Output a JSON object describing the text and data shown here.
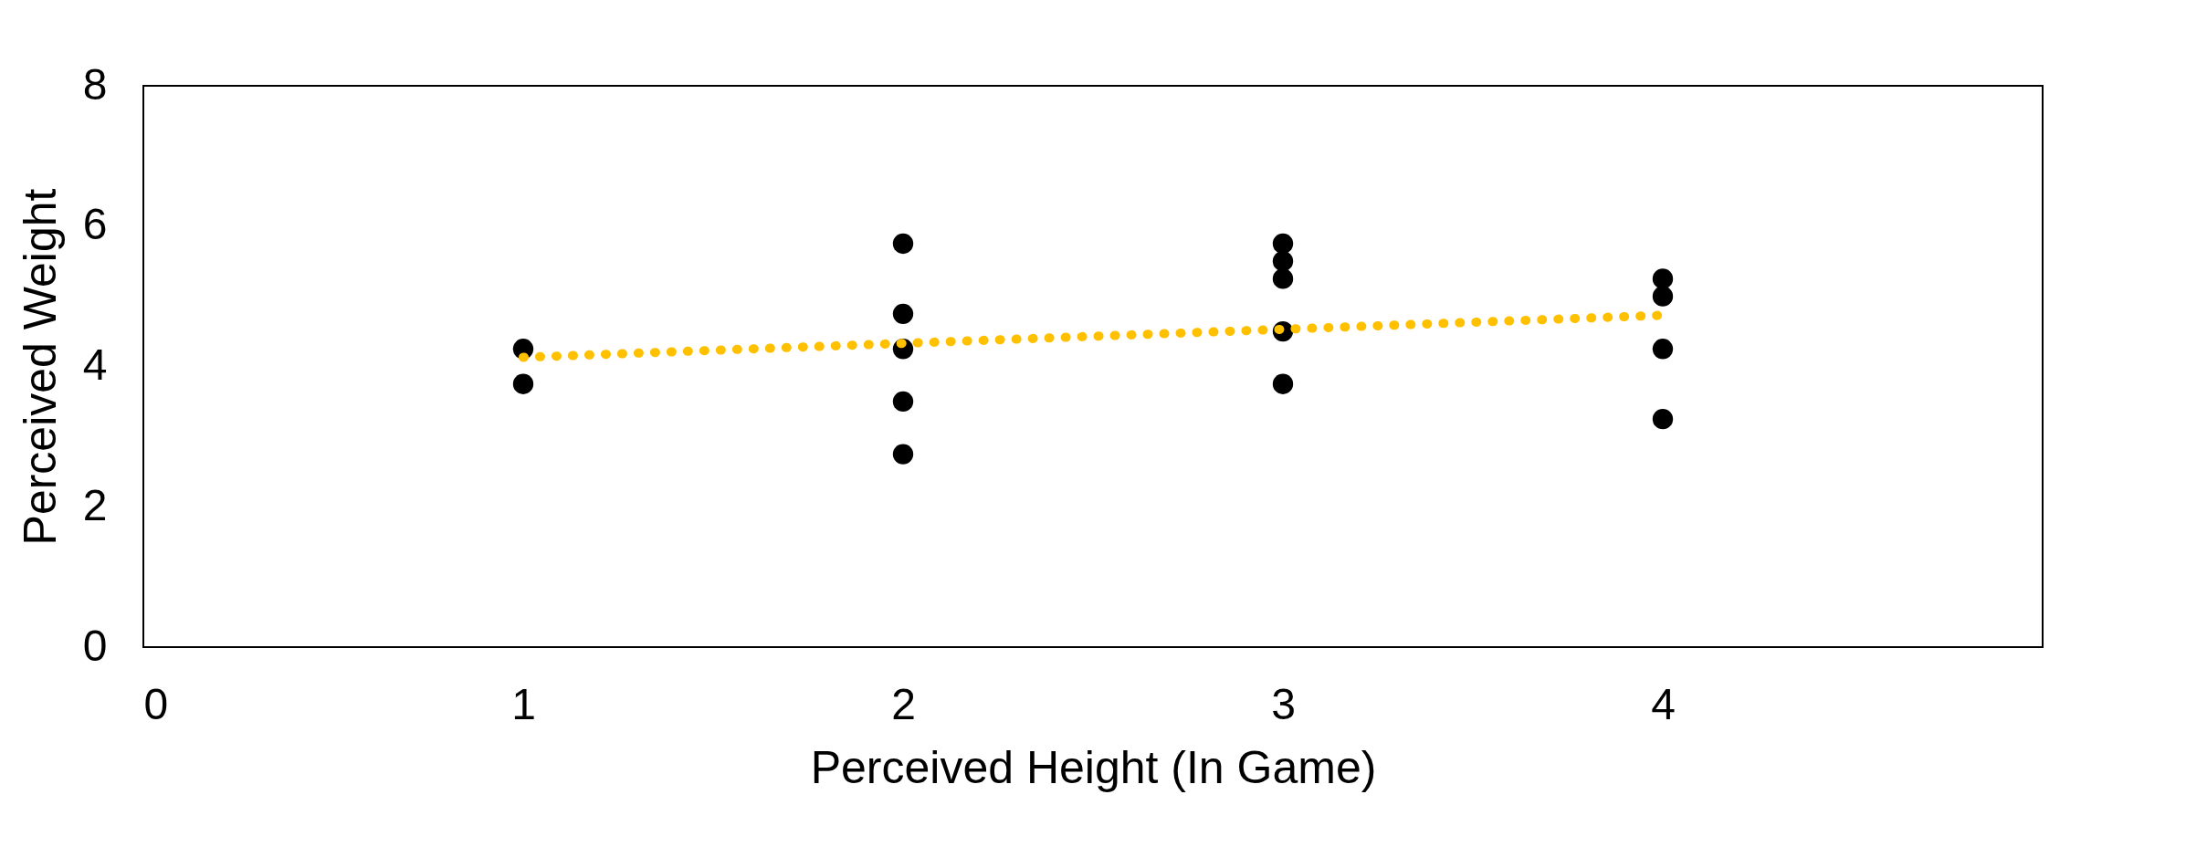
{
  "chart_data": {
    "type": "scatter",
    "xlabel": "Perceived Height (In Game)",
    "ylabel": "Perceived Weight",
    "xlim": [
      0,
      5
    ],
    "xticks": [
      0,
      1,
      2,
      3,
      4
    ],
    "ylim": [
      0,
      8
    ],
    "yticks": [
      0,
      2,
      4,
      6,
      8
    ],
    "grid": false,
    "series": [
      {
        "color": "#000000",
        "marker": "circle",
        "x": [
          1,
          1,
          2,
          2,
          2,
          2,
          2,
          3,
          3,
          3,
          3,
          3,
          4,
          4,
          4,
          4
        ],
        "values": [
          4.25,
          3.75,
          5.75,
          4.75,
          4.25,
          3.5,
          2.75,
          5.75,
          5.5,
          5.25,
          4.5,
          3.75,
          5.25,
          5.0,
          4.25,
          3.25
        ]
      },
      {
        "type": "line",
        "color": "#ffc000",
        "line_style": "dotted",
        "marker": "none",
        "x": [
          1,
          4
        ],
        "values": [
          4.13,
          4.73
        ]
      }
    ]
  }
}
